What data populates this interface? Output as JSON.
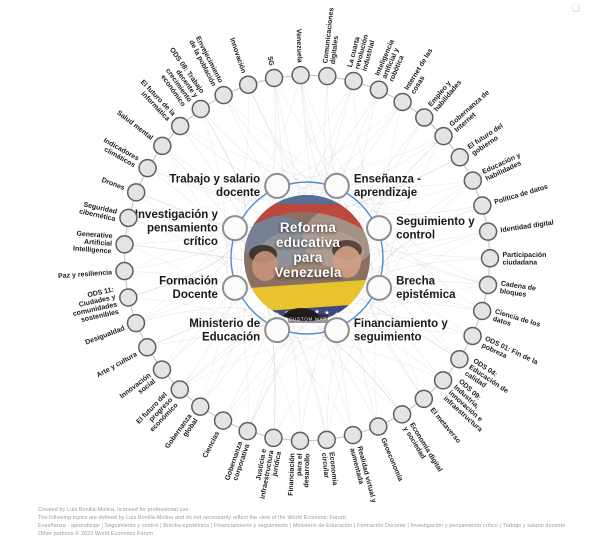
{
  "icons": {
    "watermark": "❏"
  },
  "colors": {
    "accent_blue": "#4f8fd0",
    "outer_node_fill": "#e4e4e4",
    "outer_node_stroke": "#5f5f5f",
    "inner_node_fill": "#fbfbfb",
    "inner_node_stroke": "#8e8e8e",
    "ring_line": "#c6c6c6",
    "connection": "#000000",
    "label": "#1a1a1a",
    "footer_text": "#9b9b9b",
    "flag_yellow": "#e9c32e",
    "flag_blue": "#3b4a7e",
    "flag_red": "#b73d33"
  },
  "map": {
    "center": {
      "title": "Reforma educativa para Venezuela",
      "title_lines": [
        "Reforma",
        "educativa",
        "para",
        "Venezuela"
      ],
      "badge": "CUSTOM MAP"
    },
    "inner_topics": [
      {
        "label": "Enseñanza - aprendizaje",
        "lines": [
          "Enseñanza -",
          "aprendizaje"
        ]
      },
      {
        "label": "Seguimiento y control",
        "lines": [
          "Seguimiento y",
          "control"
        ]
      },
      {
        "label": "Brecha epistémica",
        "lines": [
          "Brecha",
          "epistémica"
        ]
      },
      {
        "label": "Financiamiento y seguimiento",
        "lines": [
          "Financiamiento y",
          "seguimiento"
        ]
      },
      {
        "label": "Ministerio de Educación",
        "lines": [
          "Ministerio de",
          "Educación"
        ]
      },
      {
        "label": "Formación Docente",
        "lines": [
          "Formación",
          "Docente"
        ]
      },
      {
        "label": "Investigación y pensamiento crítico",
        "lines": [
          "Investigación y",
          "pensamiento",
          "crítico"
        ]
      },
      {
        "label": "Trabajo y salario docente",
        "lines": [
          "Trabajo y salario",
          "docente"
        ]
      }
    ],
    "outer_topics": [
      {
        "label": "Venezuela",
        "lines": [
          "Venezuela"
        ]
      },
      {
        "label": "Comunicaciones digitales",
        "lines": [
          "Comunicaciones",
          "digitales"
        ]
      },
      {
        "label": "La cuarta revolución industrial",
        "lines": [
          "La cuarta",
          "revolución",
          "industrial"
        ]
      },
      {
        "label": "Inteligencia artificial y robótica",
        "lines": [
          "Inteligencia",
          "artificial y",
          "robótica"
        ]
      },
      {
        "label": "Internet de las cosas",
        "lines": [
          "Internet de las",
          "cosas"
        ]
      },
      {
        "label": "Empleo y habilidades",
        "lines": [
          "Empleo y",
          "habilidades"
        ]
      },
      {
        "label": "Gobernanza de Internet",
        "lines": [
          "Gobernanza de",
          "Internet"
        ]
      },
      {
        "label": "El futuro del gobierno",
        "lines": [
          "El futuro del",
          "gobierno"
        ]
      },
      {
        "label": "Educación y habilidades",
        "lines": [
          "Educación y",
          "habilidades"
        ]
      },
      {
        "label": "Política de datos",
        "lines": [
          "Política de datos"
        ]
      },
      {
        "label": "Identidad digital",
        "lines": [
          "Identidad digital"
        ]
      },
      {
        "label": "Participación ciudadana",
        "lines": [
          "Participación",
          "ciudadana"
        ]
      },
      {
        "label": "Cadena de bloques",
        "lines": [
          "Cadena de",
          "bloques"
        ]
      },
      {
        "label": "Ciencia de los datos",
        "lines": [
          "Ciencia de los",
          "datos"
        ]
      },
      {
        "label": "ODS 01: Fin de la pobreza",
        "lines": [
          "ODS 01: Fin de la",
          "pobreza"
        ]
      },
      {
        "label": "ODS 04: Educación de calidad",
        "lines": [
          "ODS 04:",
          "Educación de",
          "calidad"
        ]
      },
      {
        "label": "ODS 09: Industria, innovación e infraestructura",
        "lines": [
          "ODS 09:",
          "Industria,",
          "innovación e",
          "infraestructura"
        ]
      },
      {
        "label": "El metaverso",
        "lines": [
          "El metaverso"
        ]
      },
      {
        "label": "Economía digital y sociedad",
        "lines": [
          "Economía digital",
          "y sociedad"
        ]
      },
      {
        "label": "Geoeconomía",
        "lines": [
          "Geoeconomía"
        ]
      },
      {
        "label": "Realidad virtual y aumentada",
        "lines": [
          "Realidad virtual y",
          "aumentada"
        ]
      },
      {
        "label": "Economía circular",
        "lines": [
          "Economía",
          "circular"
        ]
      },
      {
        "label": "Financiación para el desarrollo",
        "lines": [
          "Financiación",
          "para el",
          "desarrollo"
        ]
      },
      {
        "label": "Justicia e infraestructura jurídica",
        "lines": [
          "Justicia e",
          "infraestructura",
          "jurídica"
        ]
      },
      {
        "label": "Gobernanza corporativa",
        "lines": [
          "Gobernanza",
          "corporativa"
        ]
      },
      {
        "label": "Ciencias",
        "lines": [
          "Ciencias"
        ]
      },
      {
        "label": "Gobernanza global",
        "lines": [
          "Gobernanza",
          "global"
        ]
      },
      {
        "label": "El futuro del progreso económico",
        "lines": [
          "El futuro del",
          "progreso",
          "económico"
        ]
      },
      {
        "label": "Innovación social",
        "lines": [
          "Innovación",
          "social"
        ]
      },
      {
        "label": "Arte y cultura",
        "lines": [
          "Arte y cultura"
        ]
      },
      {
        "label": "Desigualdad",
        "lines": [
          "Desigualdad"
        ]
      },
      {
        "label": "ODS 11: Ciudades y comunidades sostenibles",
        "lines": [
          "ODS 11:",
          "Ciudades y",
          "comunidades",
          "sostenibles"
        ]
      },
      {
        "label": "Paz y resiliencia",
        "lines": [
          "Paz y resiliencia"
        ]
      },
      {
        "label": "Generative Artificial Intelligence",
        "lines": [
          "Generative",
          "Artificial",
          "Intelligence"
        ]
      },
      {
        "label": "Seguridad cibernética",
        "lines": [
          "Seguridad",
          "cibernética"
        ]
      },
      {
        "label": "Drones",
        "lines": [
          "Drones"
        ]
      },
      {
        "label": "Indicadores climáticos",
        "lines": [
          "Indicadores",
          "climáticos"
        ]
      },
      {
        "label": "Salud mental",
        "lines": [
          "Salud mental"
        ]
      },
      {
        "label": "El futuro de la informática",
        "lines": [
          "El futuro de la",
          "informática"
        ]
      },
      {
        "label": "ODS 08: Trabajo decente y crecimiento económico",
        "lines": [
          "ODS 08: Trabajo",
          "decente y",
          "crecimiento",
          "económico"
        ]
      },
      {
        "label": "Envejecimiento de la población",
        "lines": [
          "Envejecimiento",
          "de la población"
        ]
      },
      {
        "label": "Innovación",
        "lines": [
          "Innovación"
        ]
      },
      {
        "label": "5G",
        "lines": [
          "5G"
        ]
      }
    ]
  },
  "footer": {
    "lines": [
      "Created by Luis Bonilla-Molina, licensed for professional use.",
      "The following topics are defined by Luis Bonilla-Molina and do not necessarily reflect the view of the World Economic Forum:",
      "Enseñanza - aprendizaje | Seguimiento y control | Brecha epistémica | Financiamiento y seguimiento | Ministerio de Educación | Formación Docente | Investigación y pensamiento crítico | Trabajo y salario docente",
      "Other portions © 2023 World Economic Forum"
    ]
  }
}
